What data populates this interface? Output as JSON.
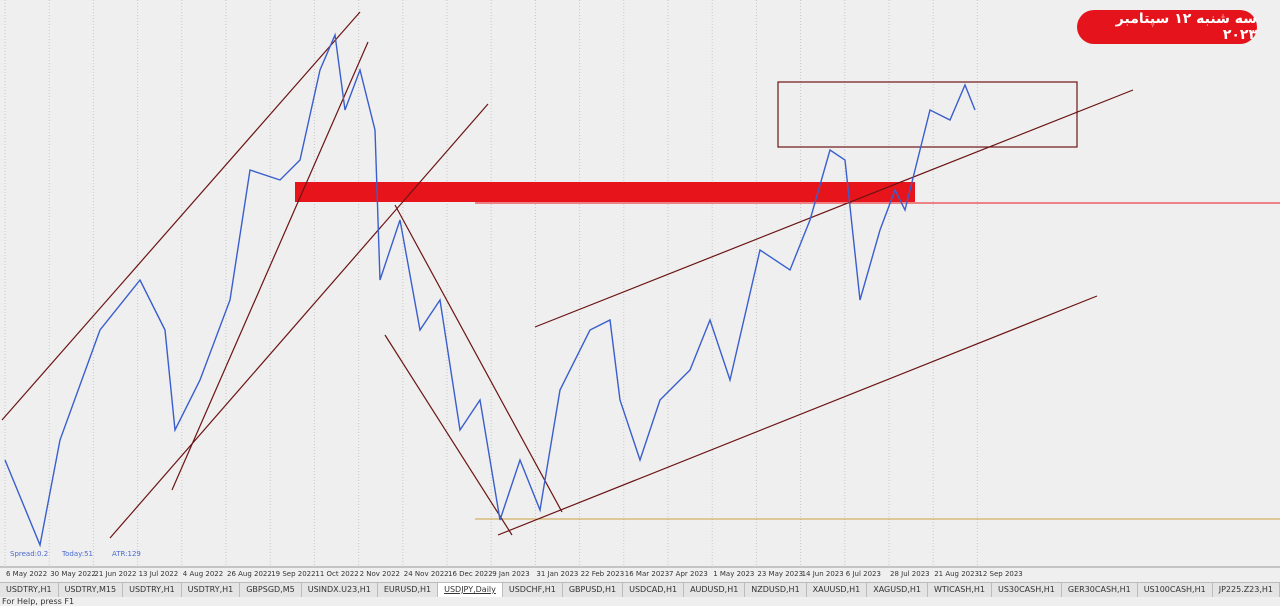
{
  "badge": "سه شنبه ۱۲ سپتامبر ۲۰۲۳",
  "info": {
    "spread": "Spread:0.2",
    "today": "Today:51",
    "atr": "ATR:129"
  },
  "x_axis_labels": [
    "6 May 2022",
    "30 May 2022",
    "21 Jun 2022",
    "13 Jul 2022",
    "4 Aug 2022",
    "26 Aug 2022",
    "19 Sep 2022",
    "11 Oct 2022",
    "2 Nov 2022",
    "24 Nov 2022",
    "16 Dec 2022",
    "9 Jan 2023",
    "31 Jan 2023",
    "22 Feb 2023",
    "16 Mar 2023",
    "7 Apr 2023",
    "1 May 2023",
    "23 May 2023",
    "14 Jun 2023",
    "6 Jul 2023",
    "28 Jul 2023",
    "21 Aug 2023",
    "12 Sep 2023"
  ],
  "tabs": [
    "USDTRY,H1",
    "USDTRY,M15",
    "USDTRY,H1",
    "USDTRY,H1",
    "GBPSGD,M5",
    "USINDX.U23,H1",
    "EURUSD,H1",
    "USDJPY,Daily",
    "USDCHF,H1",
    "GBPUSD,H1",
    "USDCAD,H1",
    "AUDUSD,H1",
    "NZDUSD,H1",
    "XAUUSD,H1",
    "XAGUSD,H1",
    "WTICASH,H1",
    "US30CASH,H1",
    "GER30CASH,H1",
    "US100CASH,H1",
    "JP225.Z23,H1"
  ],
  "active_tab": 7,
  "status": "For Help, press F1"
}
